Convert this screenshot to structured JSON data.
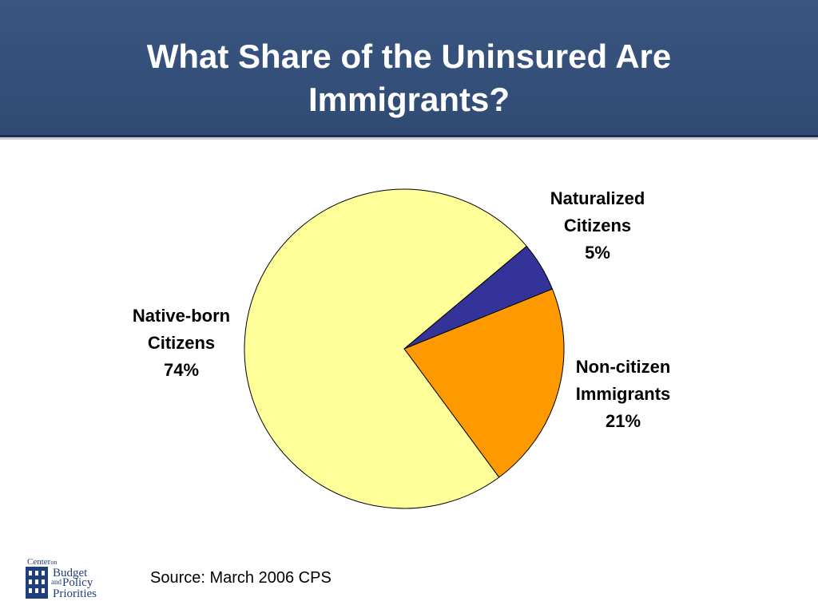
{
  "slide": {
    "title_line1": "What Share of the Uninsured Are",
    "title_line2": "Immigrants?",
    "source": "Source: March 2006 CPS",
    "header_color": "#34507a"
  },
  "logo": {
    "word1": "Center",
    "word1_small": "on",
    "word2": "Budget",
    "word3": "and",
    "word4": "Policy",
    "word5": "Priorities",
    "color": "#1f3f7a"
  },
  "chart_data": {
    "type": "pie",
    "title": "What Share of the Uninsured Are Immigrants?",
    "start_angle_deg": 50,
    "direction": "clockwise",
    "slices": [
      {
        "name_line1": "Naturalized",
        "name_line2": "Citizens",
        "value": 5,
        "label": "5%",
        "color": "#333399"
      },
      {
        "name_line1": "Non-citizen",
        "name_line2": "Immigrants",
        "value": 21,
        "label": "21%",
        "color": "#ff9900"
      },
      {
        "name_line1": "Native-born",
        "name_line2": "Citizens",
        "value": 74,
        "label": "74%",
        "color": "#ffff99"
      }
    ]
  }
}
